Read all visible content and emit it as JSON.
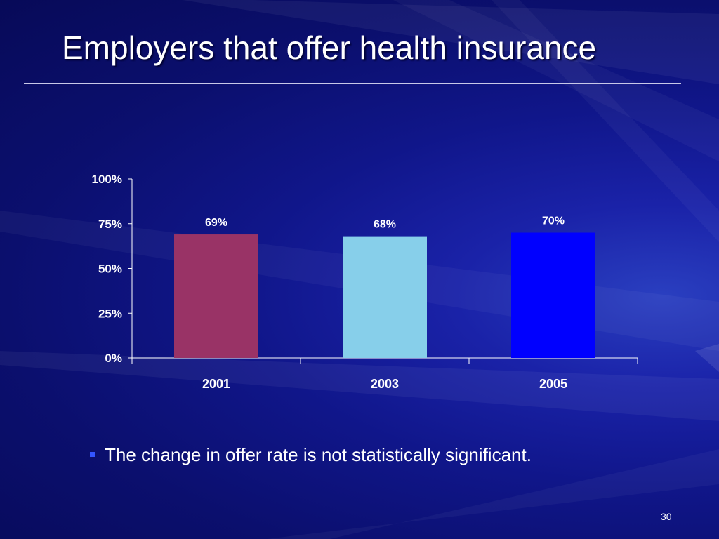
{
  "slide": {
    "title": "Employers that offer health insurance",
    "bullet": "The change in offer rate is not statistically significant.",
    "page_number": "30"
  },
  "colors": {
    "background": "#0b0f6e",
    "bullet": "#3355ff"
  },
  "chart_data": {
    "type": "bar",
    "categories": [
      "2001",
      "2003",
      "2005"
    ],
    "values": [
      69,
      68,
      70
    ],
    "data_labels": [
      "69%",
      "68%",
      "70%"
    ],
    "bar_colors": [
      "#993366",
      "#87cfea",
      "#0000ff"
    ],
    "ylim": [
      0,
      100
    ],
    "yticks": [
      0,
      25,
      50,
      75,
      100
    ],
    "ytick_labels": [
      "0%",
      "25%",
      "50%",
      "75%",
      "100%"
    ],
    "title": "",
    "xlabel": "",
    "ylabel": "",
    "grid": false,
    "legend": "none"
  }
}
